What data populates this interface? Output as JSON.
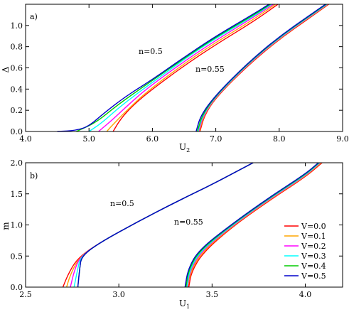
{
  "chart_data": [
    {
      "type": "line",
      "panel_label": "a)",
      "xlabel": "U",
      "xlabel_sub": "2",
      "ylabel": "Δ",
      "xlim": [
        4.0,
        9.0
      ],
      "ylim": [
        0.0,
        1.2
      ],
      "xticks": [
        4.0,
        5.0,
        6.0,
        7.0,
        8.0,
        9.0
      ],
      "xtick_labels": [
        "4.0",
        "5.0",
        "6.0",
        "7.0",
        "8.0",
        "9.0"
      ],
      "yticks": [
        0.0,
        0.2,
        0.4,
        0.6,
        0.8,
        1.0
      ],
      "ytick_labels": [
        "0.0",
        "0.2",
        "0.4",
        "0.6",
        "0.8",
        "1.0"
      ],
      "annotations": [
        {
          "text": "n=0.5",
          "x": 5.83,
          "y": 0.75
        },
        {
          "text": "n=0.55",
          "x": 6.73,
          "y": 0.58
        }
      ],
      "series": [
        {
          "name": "V=0.0",
          "color": "#ff0000",
          "group": "n=0.5",
          "points": [
            [
              5.38,
              0
            ],
            [
              5.5,
              0.12
            ],
            [
              5.7,
              0.25
            ],
            [
              6.0,
              0.4
            ],
            [
              6.5,
              0.62
            ],
            [
              7.0,
              0.82
            ],
            [
              7.6,
              1.04
            ],
            [
              7.98,
              1.2
            ]
          ]
        },
        {
          "name": "V=0.1",
          "color": "#ffa500",
          "group": "n=0.5",
          "points": [
            [
              5.28,
              0
            ],
            [
              5.4,
              0.08
            ],
            [
              5.6,
              0.2
            ],
            [
              5.9,
              0.37
            ],
            [
              6.5,
              0.64
            ],
            [
              7.0,
              0.84
            ],
            [
              7.6,
              1.06
            ],
            [
              7.94,
              1.2
            ]
          ]
        },
        {
          "name": "V=0.2",
          "color": "#ff00ff",
          "group": "n=0.5",
          "points": [
            [
              5.15,
              0
            ],
            [
              5.35,
              0.1
            ],
            [
              5.6,
              0.24
            ],
            [
              5.9,
              0.4
            ],
            [
              6.5,
              0.66
            ],
            [
              7.0,
              0.86
            ],
            [
              7.6,
              1.08
            ],
            [
              7.91,
              1.2
            ]
          ]
        },
        {
          "name": "V=0.3",
          "color": "#00ffff",
          "group": "n=0.5",
          "points": [
            [
              5.0,
              0
            ],
            [
              5.2,
              0.08
            ],
            [
              5.5,
              0.24
            ],
            [
              5.9,
              0.42
            ],
            [
              6.5,
              0.68
            ],
            [
              7.0,
              0.88
            ],
            [
              7.6,
              1.09
            ],
            [
              7.88,
              1.2
            ]
          ]
        },
        {
          "name": "V=0.4",
          "color": "#00cc00",
          "group": "n=0.5",
          "points": [
            [
              4.8,
              0
            ],
            [
              5.1,
              0.08
            ],
            [
              5.45,
              0.25
            ],
            [
              5.9,
              0.44
            ],
            [
              6.5,
              0.69
            ],
            [
              7.0,
              0.89
            ],
            [
              7.6,
              1.1
            ],
            [
              7.86,
              1.2
            ]
          ]
        },
        {
          "name": "V=0.5",
          "color": "#0000cc",
          "group": "n=0.5",
          "points": [
            [
              4.5,
              0
            ],
            [
              4.8,
              0.01
            ],
            [
              5.0,
              0.05
            ],
            [
              5.25,
              0.18
            ],
            [
              5.6,
              0.34
            ],
            [
              6.0,
              0.49
            ],
            [
              6.5,
              0.7
            ],
            [
              7.0,
              0.9
            ],
            [
              7.6,
              1.11
            ],
            [
              7.84,
              1.2
            ]
          ]
        },
        {
          "name": "V=0.0",
          "color": "#ff0000",
          "group": "n=0.55",
          "points": [
            [
              6.75,
              0
            ],
            [
              6.82,
              0.15
            ],
            [
              7.0,
              0.32
            ],
            [
              7.5,
              0.62
            ],
            [
              8.0,
              0.87
            ],
            [
              8.5,
              1.08
            ],
            [
              8.78,
              1.2
            ]
          ]
        },
        {
          "name": "V=0.1",
          "color": "#ffa500",
          "group": "n=0.55",
          "points": [
            [
              6.74,
              0
            ],
            [
              6.81,
              0.15
            ],
            [
              7.0,
              0.325
            ],
            [
              7.5,
              0.625
            ],
            [
              8.0,
              0.875
            ],
            [
              8.5,
              1.085
            ],
            [
              8.77,
              1.2
            ]
          ]
        },
        {
          "name": "V=0.2",
          "color": "#ff00ff",
          "group": "n=0.55",
          "points": [
            [
              6.73,
              0
            ],
            [
              6.8,
              0.15
            ],
            [
              7.0,
              0.33
            ],
            [
              7.5,
              0.63
            ],
            [
              8.0,
              0.88
            ],
            [
              8.5,
              1.09
            ],
            [
              8.76,
              1.2
            ]
          ]
        },
        {
          "name": "V=0.3",
          "color": "#00ffff",
          "group": "n=0.55",
          "points": [
            [
              6.72,
              0
            ],
            [
              6.79,
              0.15
            ],
            [
              7.0,
              0.335
            ],
            [
              7.5,
              0.635
            ],
            [
              8.0,
              0.885
            ],
            [
              8.5,
              1.095
            ],
            [
              8.75,
              1.2
            ]
          ]
        },
        {
          "name": "V=0.4",
          "color": "#00cc00",
          "group": "n=0.55",
          "points": [
            [
              6.71,
              0
            ],
            [
              6.78,
              0.15
            ],
            [
              7.0,
              0.34
            ],
            [
              7.5,
              0.64
            ],
            [
              8.0,
              0.89
            ],
            [
              8.5,
              1.1
            ],
            [
              8.74,
              1.2
            ]
          ]
        },
        {
          "name": "V=0.5",
          "color": "#0000cc",
          "group": "n=0.55",
          "points": [
            [
              6.69,
              0
            ],
            [
              6.76,
              0.15
            ],
            [
              7.0,
              0.345
            ],
            [
              7.5,
              0.645
            ],
            [
              8.0,
              0.895
            ],
            [
              8.5,
              1.105
            ],
            [
              8.73,
              1.2
            ]
          ]
        }
      ]
    },
    {
      "type": "line",
      "panel_label": "b)",
      "xlabel": "U",
      "xlabel_sub": "1",
      "ylabel": "m",
      "xlim": [
        2.5,
        4.2
      ],
      "ylim": [
        0.0,
        2.0
      ],
      "xticks": [
        2.5,
        3.0,
        3.5,
        4.0
      ],
      "xtick_labels": [
        "2.5",
        "3.0",
        "3.5",
        "4.0"
      ],
      "yticks": [
        0.0,
        0.5,
        1.0,
        1.5,
        2.0
      ],
      "ytick_labels": [
        "0.0",
        "0.5",
        "1.0",
        "1.5",
        "2.0"
      ],
      "annotations": [
        {
          "text": "n=0.5",
          "x": 2.93,
          "y": 1.32
        },
        {
          "text": "n=0.55",
          "x": 3.26,
          "y": 0.95
        }
      ],
      "legend": {
        "position": "lower-right",
        "entries": [
          "V=0.0",
          "V=0.1",
          "V=0.2",
          "V=0.3",
          "V=0.4",
          "V=0.5"
        ],
        "colors": [
          "#ff0000",
          "#ffa500",
          "#ff00ff",
          "#00ffff",
          "#00cc00",
          "#0000cc"
        ]
      },
      "series": [
        {
          "name": "V=0.0",
          "color": "#ff0000",
          "group": "n=0.5",
          "points": [
            [
              2.7,
              0
            ],
            [
              2.73,
              0.22
            ],
            [
              2.78,
              0.47
            ],
            [
              2.9,
              0.72
            ],
            [
              3.1,
              1.05
            ],
            [
              3.3,
              1.36
            ],
            [
              3.5,
              1.65
            ],
            [
              3.72,
              2.0
            ]
          ]
        },
        {
          "name": "V=0.1",
          "color": "#ffa500",
          "group": "n=0.5",
          "points": [
            [
              2.72,
              0
            ],
            [
              2.74,
              0.2
            ],
            [
              2.785,
              0.47
            ],
            [
              2.9,
              0.72
            ],
            [
              3.1,
              1.05
            ],
            [
              3.3,
              1.36
            ],
            [
              3.5,
              1.65
            ],
            [
              3.72,
              2.0
            ]
          ]
        },
        {
          "name": "V=0.2",
          "color": "#ff00ff",
          "group": "n=0.5",
          "points": [
            [
              2.74,
              0
            ],
            [
              2.76,
              0.25
            ],
            [
              2.79,
              0.48
            ],
            [
              2.9,
              0.72
            ],
            [
              3.1,
              1.05
            ],
            [
              3.3,
              1.36
            ],
            [
              3.5,
              1.65
            ],
            [
              3.72,
              2.0
            ]
          ]
        },
        {
          "name": "V=0.3",
          "color": "#00ffff",
          "group": "n=0.5",
          "points": [
            [
              2.76,
              0
            ],
            [
              2.78,
              0.3
            ],
            [
              2.795,
              0.49
            ],
            [
              2.9,
              0.72
            ],
            [
              3.1,
              1.05
            ],
            [
              3.3,
              1.36
            ],
            [
              3.5,
              1.65
            ],
            [
              3.72,
              2.0
            ]
          ]
        },
        {
          "name": "V=0.4",
          "color": "#00cc00",
          "group": "n=0.5",
          "points": [
            [
              2.78,
              0
            ],
            [
              2.79,
              0.3
            ],
            [
              2.8,
              0.5
            ],
            [
              2.9,
              0.72
            ],
            [
              3.1,
              1.05
            ],
            [
              3.3,
              1.36
            ],
            [
              3.5,
              1.65
            ],
            [
              3.72,
              2.0
            ]
          ]
        },
        {
          "name": "V=0.5",
          "color": "#0000cc",
          "group": "n=0.5",
          "points": [
            [
              2.78,
              0
            ],
            [
              2.79,
              0.3
            ],
            [
              2.8,
              0.5
            ],
            [
              2.9,
              0.72
            ],
            [
              3.1,
              1.05
            ],
            [
              3.3,
              1.36
            ],
            [
              3.5,
              1.65
            ],
            [
              3.72,
              2.0
            ]
          ]
        },
        {
          "name": "V=0.0",
          "color": "#ff0000",
          "group": "n=0.55",
          "points": [
            [
              3.375,
              0
            ],
            [
              3.39,
              0.25
            ],
            [
              3.45,
              0.55
            ],
            [
              3.6,
              0.95
            ],
            [
              3.8,
              1.38
            ],
            [
              4.0,
              1.77
            ],
            [
              4.09,
              2.0
            ]
          ]
        },
        {
          "name": "V=0.1",
          "color": "#ffa500",
          "group": "n=0.55",
          "points": [
            [
              3.37,
              0
            ],
            [
              3.385,
              0.26
            ],
            [
              3.445,
              0.56
            ],
            [
              3.6,
              0.96
            ],
            [
              3.8,
              1.39
            ],
            [
              4.0,
              1.78
            ],
            [
              4.085,
              2.0
            ]
          ]
        },
        {
          "name": "V=0.2",
          "color": "#ff00ff",
          "group": "n=0.55",
          "points": [
            [
              3.367,
              0
            ],
            [
              3.382,
              0.27
            ],
            [
              3.44,
              0.57
            ],
            [
              3.6,
              0.97
            ],
            [
              3.8,
              1.4
            ],
            [
              4.0,
              1.79
            ],
            [
              4.08,
              2.0
            ]
          ]
        },
        {
          "name": "V=0.3",
          "color": "#00ffff",
          "group": "n=0.55",
          "points": [
            [
              3.364,
              0
            ],
            [
              3.38,
              0.28
            ],
            [
              3.437,
              0.58
            ],
            [
              3.6,
              0.98
            ],
            [
              3.8,
              1.41
            ],
            [
              4.0,
              1.8
            ],
            [
              4.077,
              2.0
            ]
          ]
        },
        {
          "name": "V=0.4",
          "color": "#00cc00",
          "group": "n=0.55",
          "points": [
            [
              3.36,
              0
            ],
            [
              3.376,
              0.29
            ],
            [
              3.433,
              0.59
            ],
            [
              3.6,
              0.99
            ],
            [
              3.8,
              1.42
            ],
            [
              4.0,
              1.81
            ],
            [
              4.073,
              2.0
            ]
          ]
        },
        {
          "name": "V=0.5",
          "color": "#0000cc",
          "group": "n=0.55",
          "points": [
            [
              3.355,
              0
            ],
            [
              3.372,
              0.3
            ],
            [
              3.43,
              0.6
            ],
            [
              3.6,
              1.0
            ],
            [
              3.8,
              1.43
            ],
            [
              4.0,
              1.82
            ],
            [
              4.07,
              2.0
            ]
          ]
        }
      ]
    }
  ]
}
